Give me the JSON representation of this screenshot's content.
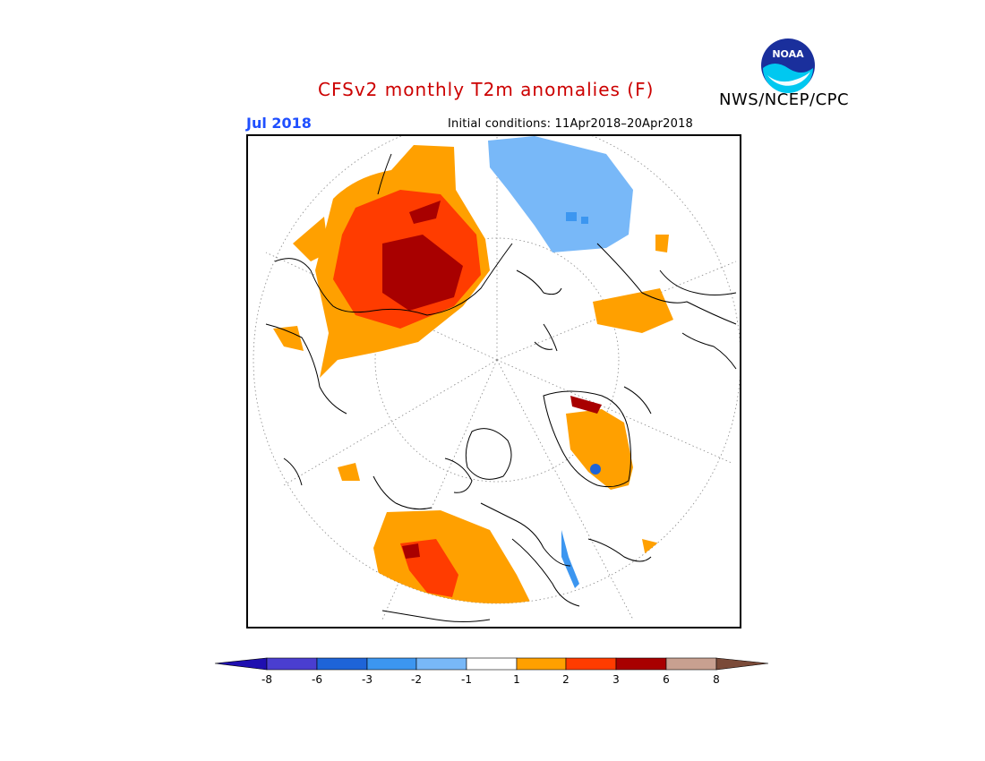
{
  "header": {
    "title": "CFSv2 monthly T2m anomalies (F)",
    "title_color": "#cc0000",
    "organization": "NWS/NCEP/CPC",
    "logo_text": "NOAA",
    "month": "Jul 2018",
    "month_color": "#1f4fff",
    "initial_conditions": "Initial conditions: 11Apr2018–20Apr2018"
  },
  "map": {
    "projection": "north-polar-stereographic",
    "land_outline_color": "#000000",
    "graticule_style": "dotted"
  },
  "legend": {
    "ticks": [
      "-8",
      "-6",
      "-3",
      "-2",
      "-1",
      "1",
      "2",
      "3",
      "6",
      "8"
    ],
    "colors": [
      "#1f0fb0",
      "#4a3ed0",
      "#1e64d8",
      "#3c96f0",
      "#78b8f8",
      "#ffffff",
      "#ffa000",
      "#ff3c00",
      "#a80000",
      "#c8a090",
      "#7a4a38"
    ]
  }
}
